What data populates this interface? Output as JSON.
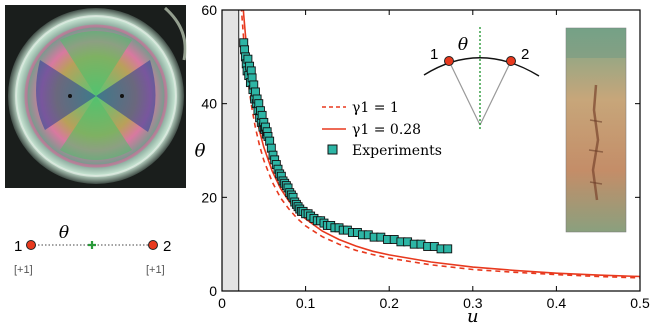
{
  "chart_data": {
    "type": "scatter",
    "xlabel": "u",
    "ylabel": "θ",
    "xlim": [
      0,
      0.5
    ],
    "ylim": [
      0,
      60
    ],
    "xticks": [
      0,
      0.1,
      0.2,
      0.3,
      0.4,
      0.5
    ],
    "xtick_labels": [
      "0",
      "0.1",
      "0.2",
      "0.3",
      "0.4",
      "0.5"
    ],
    "yticks": [
      0,
      20,
      40,
      60
    ],
    "ytick_labels": [
      "0",
      "20",
      "40",
      "60"
    ],
    "grid": false,
    "legend_position": "center",
    "shaded_region_x": [
      0,
      0.02
    ],
    "series": [
      {
        "name": "γ1 = 1",
        "style": "dashed",
        "color": "#e8391e",
        "x": [
          0.021,
          0.022,
          0.024,
          0.026,
          0.028,
          0.03,
          0.033,
          0.036,
          0.04,
          0.045,
          0.05,
          0.06,
          0.07,
          0.08,
          0.09,
          0.1,
          0.12,
          0.14,
          0.16,
          0.18,
          0.2,
          0.25,
          0.3,
          0.35,
          0.4,
          0.45,
          0.5
        ],
        "y": [
          66.5,
          63.6,
          58.2,
          53.7,
          49.9,
          46.6,
          42.3,
          38.8,
          34.9,
          31.0,
          27.9,
          23.3,
          19.9,
          17.5,
          15.5,
          13.9,
          11.6,
          10.0,
          8.7,
          7.8,
          7.0,
          5.6,
          4.6,
          4.0,
          3.5,
          3.1,
          2.8
        ]
      },
      {
        "name": "γ1 = 0.28",
        "style": "solid",
        "color": "#e8391e",
        "x": [
          0.024,
          0.025,
          0.026,
          0.028,
          0.03,
          0.033,
          0.036,
          0.04,
          0.045,
          0.05,
          0.06,
          0.07,
          0.08,
          0.09,
          0.1,
          0.12,
          0.14,
          0.16,
          0.18,
          0.2,
          0.25,
          0.3,
          0.35,
          0.4,
          0.45,
          0.5
        ],
        "y": [
          64.0,
          61.4,
          59.0,
          54.8,
          51.2,
          46.5,
          42.6,
          38.4,
          34.1,
          30.7,
          25.6,
          21.9,
          19.2,
          17.1,
          15.4,
          12.8,
          11.0,
          9.6,
          8.5,
          7.7,
          6.2,
          5.1,
          4.4,
          3.8,
          3.4,
          3.1
        ]
      },
      {
        "name": "Experiments",
        "style": "markers",
        "marker": "square",
        "color": "#2db5a5",
        "x": [
          0.026,
          0.027,
          0.028,
          0.029,
          0.03,
          0.031,
          0.032,
          0.033,
          0.034,
          0.035,
          0.036,
          0.037,
          0.038,
          0.039,
          0.04,
          0.041,
          0.042,
          0.043,
          0.044,
          0.045,
          0.046,
          0.047,
          0.048,
          0.049,
          0.05,
          0.051,
          0.052,
          0.053,
          0.054,
          0.055,
          0.057,
          0.059,
          0.061,
          0.063,
          0.065,
          0.067,
          0.069,
          0.071,
          0.073,
          0.075,
          0.077,
          0.079,
          0.081,
          0.083,
          0.085,
          0.087,
          0.089,
          0.091,
          0.093,
          0.095,
          0.097,
          0.1,
          0.103,
          0.106,
          0.11,
          0.114,
          0.118,
          0.122,
          0.126,
          0.13,
          0.135,
          0.14,
          0.145,
          0.15,
          0.156,
          0.162,
          0.168,
          0.175,
          0.182,
          0.19,
          0.198,
          0.206,
          0.214,
          0.222,
          0.23,
          0.238,
          0.246,
          0.254,
          0.262,
          0.27
        ],
        "y": [
          53.0,
          51.5,
          50.0,
          48.5,
          47.0,
          49.5,
          46.0,
          48.0,
          44.5,
          47.0,
          45.5,
          43.0,
          44.0,
          41.0,
          42.5,
          40.0,
          41.0,
          38.5,
          40.0,
          37.0,
          38.5,
          36.0,
          37.5,
          35.0,
          36.0,
          34.5,
          35.0,
          33.5,
          34.0,
          33.0,
          32.0,
          30.5,
          29.0,
          28.0,
          27.0,
          26.0,
          25.0,
          24.5,
          23.5,
          23.0,
          22.5,
          22.0,
          21.0,
          20.5,
          20.0,
          19.0,
          18.5,
          18.0,
          17.5,
          17.0,
          17.0,
          16.5,
          16.5,
          16.0,
          15.5,
          15.0,
          15.0,
          14.5,
          14.0,
          14.0,
          13.5,
          13.5,
          13.0,
          13.0,
          12.5,
          12.5,
          12.0,
          12.0,
          11.5,
          11.5,
          11.0,
          11.0,
          10.5,
          10.5,
          10.0,
          10.0,
          9.5,
          9.5,
          9.0,
          9.0
        ]
      }
    ],
    "inset": {
      "theta_label": "θ",
      "left_point_label": "1",
      "right_point_label": "2"
    }
  },
  "schematic": {
    "theta_label": "θ",
    "left_label": "1",
    "right_label": "2",
    "left_charge": "[+1]",
    "right_charge": "[+1]"
  },
  "colors": {
    "red_marker": "#e8391e",
    "green_dash": "#2a9a3a",
    "teal_marker": "#2db5a5"
  }
}
